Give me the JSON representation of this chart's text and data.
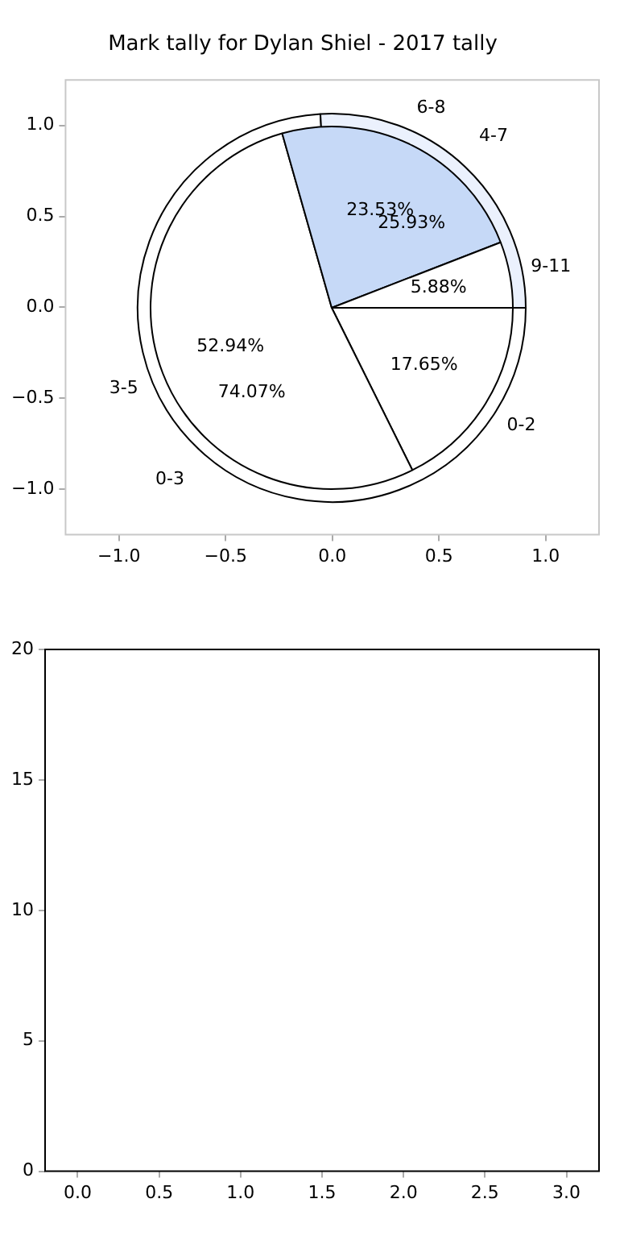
{
  "chart_data": [
    {
      "type": "scatter",
      "title": "Mark tally for Dylan Shiel - 2017 tally",
      "legend": false,
      "xlim": [
        -1.25,
        1.25
      ],
      "ylim": [
        -1.25,
        1.25
      ],
      "xticks": [
        {
          "value": -1,
          "label": "−1.0"
        },
        {
          "value": -0.5,
          "label": "−0.5"
        },
        {
          "value": 0,
          "label": "0.0"
        },
        {
          "value": 0.5,
          "label": "0.5"
        },
        {
          "value": 1,
          "label": "1.0"
        }
      ],
      "yticks": [
        {
          "value": -1,
          "label": "−1.0"
        },
        {
          "value": -0.5,
          "label": "−0.5"
        },
        {
          "value": 0,
          "label": "0.0"
        },
        {
          "value": 0.5,
          "label": "0.5"
        },
        {
          "value": 1,
          "label": "1.0"
        }
      ]
    },
    {
      "type": "pie",
      "categories": [
        "0-3",
        "4-7"
      ],
      "values": [
        74.07,
        25.93
      ],
      "colors": [
        "#ffffff",
        "#ebf1fd"
      ],
      "value_labels": [
        "74.07%",
        "25.93%"
      ],
      "legend": false
    },
    {
      "type": "pie",
      "categories": [
        "0-2",
        "3-5",
        "6-8",
        "9-11"
      ],
      "values": [
        17.65,
        52.94,
        23.53,
        5.88
      ],
      "colors": [
        "#ffffff",
        "#ffffff",
        "#c6d9f7",
        "#ffffff"
      ],
      "value_labels": [
        "17.65%",
        "52.94%",
        "23.53%",
        "5.88%"
      ],
      "legend": false
    },
    {
      "type": "scatter",
      "legend": false,
      "xlim": [
        -0.2,
        3.2
      ],
      "ylim": [
        0,
        20
      ],
      "xticks": [
        {
          "value": 0,
          "label": "0.0"
        },
        {
          "value": 0.5,
          "label": "0.5"
        },
        {
          "value": 1,
          "label": "1.0"
        },
        {
          "value": 1.5,
          "label": "1.5"
        },
        {
          "value": 2,
          "label": "2.0"
        },
        {
          "value": 2.5,
          "label": "2.5"
        },
        {
          "value": 3,
          "label": "3.0"
        }
      ],
      "yticks": [
        0,
        5,
        10,
        15,
        20
      ]
    }
  ]
}
